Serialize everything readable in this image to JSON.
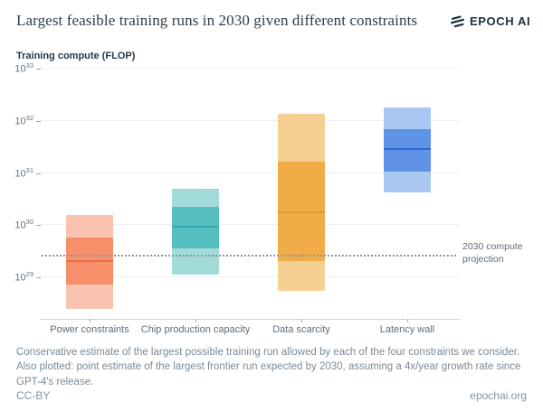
{
  "header": {
    "title": "Largest feasible training runs in 2030 given different constraints",
    "logo_text": "EPOCH AI"
  },
  "chart_data": {
    "type": "bar",
    "subtype": "log-scale-range-boxes",
    "title": "Largest feasible training runs in 2030 given different constraints",
    "ylabel": "Training compute (FLOP)",
    "xlabel": "",
    "y_scale": "log10",
    "y_tick_exponents": [
      33,
      32,
      31,
      30,
      29
    ],
    "ylim_log10": [
      28.2,
      33.1
    ],
    "grid": "horizontal",
    "categories": [
      "Power constraints",
      "Chip production capacity",
      "Data scarcity",
      "Latency wall"
    ],
    "boxes": [
      {
        "category": "Power constraints",
        "outer_low": 2.4e+28,
        "outer_high": 1.5e+30,
        "inner_low": 7e+28,
        "inner_high": 5.6e+29,
        "median": 2e+29,
        "color_outer": "#f9c3af",
        "color_inner": "#f68f6a",
        "color_median": "#e96d45"
      },
      {
        "category": "Chip production capacity",
        "outer_low": 1.1e+29,
        "outer_high": 4.8e+30,
        "inner_low": 3.4e+29,
        "inner_high": 2.2e+30,
        "median": 9e+29,
        "color_outer": "#a2dbd9",
        "color_inner": "#54bec0",
        "color_median": "#2fa9ad"
      },
      {
        "category": "Data scarcity",
        "outer_low": 5.3e+28,
        "outer_high": 1.3e+32,
        "inner_low": 2e+29,
        "inner_high": 1.6e+31,
        "median": 1.7e+30,
        "color_outer": "#f6d093",
        "color_inner": "#f1ab47",
        "color_median": "#de9a2e"
      },
      {
        "category": "Latency wall",
        "outer_low": 4.1e+30,
        "outer_high": 1.7e+32,
        "inner_low": 1e+31,
        "inner_high": 6.6e+31,
        "median": 2.8e+31,
        "color_outer": "#a9c7f0",
        "color_inner": "#5e93e6",
        "color_median": "#2a6bd3"
      }
    ],
    "reference_line": {
      "value": 2.5e+29,
      "label": "2030 compute projection",
      "style": "dotted",
      "color": "#8b98a3"
    },
    "legend_position": "none",
    "colors": {
      "grid": "#edf0f2",
      "axis": "#ccd3d9",
      "tick_text": "#64737f"
    }
  },
  "caption": "Conservative estimate of the largest possible training run allowed by each of the four constraints we consider. Also plotted: point estimate of the largest frontier run expected by 2030, assuming a 4x/year growth rate since GPT-4's release.",
  "footer": {
    "license": "CC-BY",
    "site": "epochai.org"
  }
}
